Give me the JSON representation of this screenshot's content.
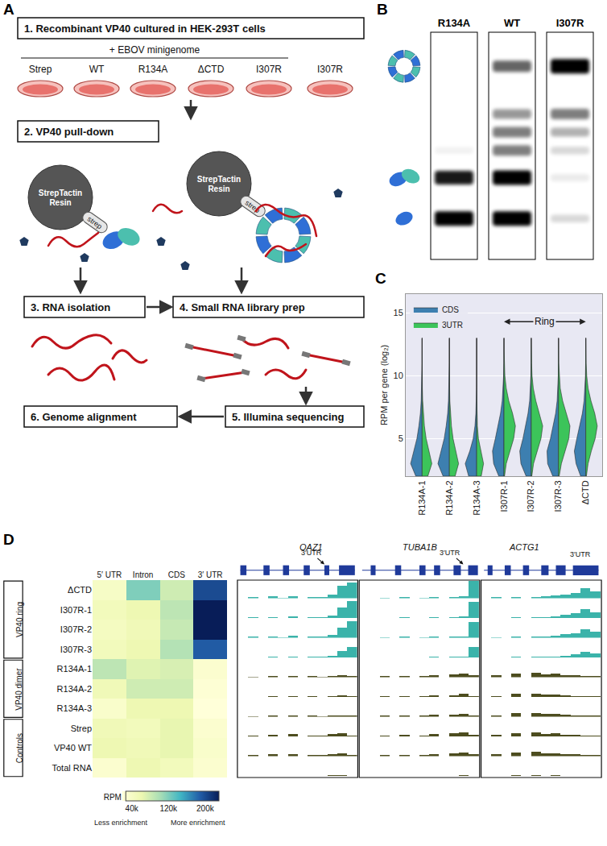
{
  "panel_labels": [
    "A",
    "B",
    "C",
    "D"
  ],
  "diagram": {
    "steps": [
      "1.  Recombinant VP40 cultured in HEK-293T cells",
      "2.  VP40 pull-down",
      "3.  RNA isolation",
      "4.  Small RNA library prep",
      "5.  Illumina sequencing",
      "6.  Genome alignment"
    ],
    "minigenome": "+ EBOV minigenome",
    "dishes": [
      "Strep",
      "WT",
      "R134A",
      "ΔCTD",
      "I307R",
      "I307R"
    ],
    "resin": "StrepTactin Resin",
    "tag": "strep"
  },
  "blot": {
    "lanes": [
      {
        "name": "R134A",
        "bands": [
          0,
          0,
          0,
          0.05,
          0.9,
          1.0
        ]
      },
      {
        "name": "WT",
        "bands": [
          0.6,
          0.4,
          0.5,
          0.5,
          1.0,
          1.0
        ]
      },
      {
        "name": "I307R",
        "bands": [
          1.0,
          0.5,
          0.3,
          0.15,
          0.08,
          0.15
        ]
      }
    ]
  },
  "chart_data": [
    {
      "type": "violin",
      "y_label": "RPM per gene (log₂)",
      "categories": [
        "R134A-1",
        "R134A-2",
        "R134A-3",
        "I307R-1",
        "I307R-2",
        "I307R-3",
        "ΔCTD"
      ],
      "y": [
        2,
        3,
        4,
        5,
        6,
        7,
        8,
        9,
        10,
        11,
        12,
        13
      ],
      "series": [
        {
          "name": "CDS",
          "color": "#3d7fb0",
          "values": [
            [
              0.55,
              1.0,
              0.75,
              0.45,
              0.28,
              0.15,
              0.08,
              0.04,
              0.02,
              0.01,
              0.005,
              0
            ],
            [
              0.55,
              1.0,
              0.75,
              0.45,
              0.28,
              0.15,
              0.08,
              0.04,
              0.02,
              0.01,
              0.005,
              0
            ],
            [
              0.7,
              1.0,
              0.6,
              0.3,
              0.15,
              0.07,
              0.03,
              0.01,
              0.005,
              0,
              0,
              0
            ],
            [
              0.45,
              0.9,
              1.0,
              0.75,
              0.5,
              0.3,
              0.15,
              0.07,
              0.03,
              0.01,
              0.005,
              0
            ],
            [
              0.45,
              0.9,
              1.0,
              0.72,
              0.48,
              0.28,
              0.14,
              0.06,
              0.03,
              0.01,
              0.005,
              0
            ],
            [
              0.5,
              0.95,
              1.0,
              0.7,
              0.45,
              0.25,
              0.12,
              0.05,
              0.02,
              0.01,
              0,
              0
            ],
            [
              0.45,
              0.85,
              1.0,
              0.78,
              0.52,
              0.3,
              0.15,
              0.07,
              0.03,
              0.01,
              0.005,
              0
            ]
          ]
        },
        {
          "name": "3UTR",
          "color": "#3cc45a",
          "values": [
            [
              0.5,
              0.85,
              0.6,
              0.35,
              0.2,
              0.1,
              0.05,
              0.02,
              0.01,
              0.005,
              0,
              0
            ],
            [
              0.5,
              0.8,
              0.55,
              0.32,
              0.18,
              0.09,
              0.04,
              0.02,
              0.01,
              0,
              0,
              0
            ],
            [
              0.4,
              0.6,
              0.35,
              0.15,
              0.06,
              0.02,
              0.01,
              0,
              0,
              0,
              0,
              0
            ],
            [
              0.05,
              0.2,
              0.5,
              0.85,
              1.0,
              0.75,
              0.42,
              0.2,
              0.08,
              0.03,
              0.01,
              0.005
            ],
            [
              0.05,
              0.2,
              0.5,
              0.85,
              1.0,
              0.72,
              0.4,
              0.18,
              0.07,
              0.03,
              0.01,
              0
            ],
            [
              0.06,
              0.25,
              0.55,
              0.9,
              1.0,
              0.7,
              0.36,
              0.15,
              0.06,
              0.02,
              0.01,
              0
            ],
            [
              0.05,
              0.2,
              0.48,
              0.82,
              1.0,
              0.78,
              0.45,
              0.2,
              0.08,
              0.03,
              0.01,
              0.005
            ]
          ]
        }
      ],
      "ylim": [
        2,
        16.5
      ],
      "yticks": [
        5,
        10,
        15
      ],
      "grid": true,
      "legend": "top left",
      "annotations": [
        {
          "text": "Ring",
          "from": "I307R-1",
          "to": "ΔCTD"
        }
      ]
    },
    {
      "type": "heatmap",
      "columns": [
        "5′ UTR",
        "Intron",
        "CDS",
        "3′ UTR"
      ],
      "rows": [
        "ΔCTD",
        "I307R-1",
        "I307R-2",
        "I307R-3",
        "R134A-1",
        "R134A-2",
        "R134A-3",
        "Strep",
        "VP40 WT",
        "Total RNA"
      ],
      "groups": [
        {
          "label": "VP40 ring",
          "rows": [
            "ΔCTD",
            "I307R-1",
            "I307R-2",
            "I307R-3"
          ]
        },
        {
          "label": "VP40 dimer",
          "rows": [
            "R134A-1",
            "R134A-2",
            "R134A-3"
          ]
        },
        {
          "label": "Controls",
          "rows": [
            "Strep",
            "VP40 WT",
            "Total RNA"
          ]
        }
      ],
      "cells": [
        [
          40000,
          120000,
          80000,
          200000
        ],
        [
          50000,
          60000,
          90000,
          230000
        ],
        [
          45000,
          55000,
          85000,
          230000
        ],
        [
          50000,
          60000,
          95000,
          190000
        ],
        [
          90000,
          70000,
          75000,
          30000
        ],
        [
          55000,
          80000,
          80000,
          25000
        ],
        [
          35000,
          60000,
          60000,
          20000
        ],
        [
          55000,
          50000,
          65000,
          30000
        ],
        [
          60000,
          55000,
          65000,
          35000
        ],
        [
          30000,
          60000,
          50000,
          30000
        ]
      ],
      "zlim": [
        20000,
        230000
      ],
      "zticks": [
        {
          "value": 40000,
          "label": "40k"
        },
        {
          "value": 120000,
          "label": "120k"
        },
        {
          "value": 200000,
          "label": "200k"
        }
      ],
      "colorbar_title": "RPM",
      "colorbar_notes": [
        "Less enrichment",
        "More enrichment"
      ]
    },
    {
      "type": "bar",
      "genes": [
        {
          "name": "OAZ1",
          "note": "3′UTR",
          "marker": "arrow"
        },
        {
          "name": "TUBA1B",
          "note": "3′UTR",
          "marker": "arrow"
        },
        {
          "name": "ACTG1",
          "note": "3′UTR",
          "marker": "none"
        }
      ],
      "ylim": [
        0,
        100
      ],
      "tick_labels": false,
      "series": [
        {
          "color": "#3bb3aa",
          "values": [
            [
              0,
              4,
              0,
              10,
              2,
              12,
              0,
              5,
              8,
              20,
              70,
              85
            ],
            [
              0,
              0,
              2,
              0,
              3,
              0,
              2,
              4,
              0,
              5,
              10,
              95
            ],
            [
              0,
              3,
              0,
              6,
              0,
              8,
              10,
              15,
              20,
              30,
              55,
              40
            ]
          ]
        },
        {
          "color": "#3bb3aa",
          "values": [
            [
              0,
              3,
              0,
              8,
              2,
              10,
              0,
              4,
              6,
              15,
              60,
              95
            ],
            [
              0,
              0,
              2,
              0,
              3,
              0,
              2,
              4,
              0,
              5,
              10,
              90
            ],
            [
              0,
              2,
              0,
              5,
              0,
              6,
              8,
              12,
              18,
              28,
              50,
              35
            ]
          ]
        },
        {
          "color": "#3bb3aa",
          "values": [
            [
              0,
              3,
              0,
              8,
              2,
              10,
              0,
              4,
              6,
              15,
              55,
              90
            ],
            [
              0,
              0,
              2,
              0,
              3,
              0,
              2,
              3,
              0,
              4,
              8,
              85
            ],
            [
              0,
              2,
              0,
              5,
              0,
              6,
              8,
              12,
              18,
              25,
              48,
              35
            ]
          ]
        },
        {
          "color": "#3bb3aa",
          "values": [
            [
              0,
              2,
              0,
              6,
              1,
              8,
              0,
              3,
              5,
              10,
              40,
              60
            ],
            [
              0,
              0,
              1,
              0,
              2,
              0,
              1,
              3,
              0,
              3,
              6,
              60
            ],
            [
              0,
              1,
              0,
              3,
              0,
              4,
              5,
              8,
              12,
              18,
              35,
              25
            ]
          ]
        },
        {
          "color": "#4d4d1f",
          "values": [
            [
              0,
              2,
              0,
              6,
              0,
              8,
              0,
              3,
              2,
              8,
              10,
              6
            ],
            [
              0,
              0,
              5,
              0,
              8,
              0,
              5,
              12,
              0,
              15,
              20,
              10
            ],
            [
              0,
              10,
              0,
              20,
              0,
              25,
              15,
              18,
              12,
              10,
              8,
              5
            ]
          ]
        },
        {
          "color": "#4d4d1f",
          "values": [
            [
              0,
              2,
              0,
              7,
              0,
              9,
              0,
              3,
              2,
              9,
              10,
              5
            ],
            [
              0,
              0,
              4,
              0,
              6,
              0,
              4,
              10,
              0,
              12,
              18,
              8
            ],
            [
              0,
              8,
              0,
              18,
              0,
              22,
              14,
              15,
              10,
              8,
              6,
              4
            ]
          ]
        },
        {
          "color": "#4d4d1f",
          "values": [
            [
              0,
              2,
              0,
              6,
              0,
              8,
              0,
              3,
              2,
              8,
              9,
              4
            ],
            [
              0,
              0,
              4,
              0,
              6,
              0,
              4,
              10,
              0,
              12,
              16,
              8
            ],
            [
              0,
              8,
              0,
              18,
              0,
              22,
              14,
              15,
              10,
              8,
              6,
              4
            ]
          ]
        },
        {
          "color": "#4d4d1f",
          "values": [
            [
              0,
              3,
              0,
              12,
              0,
              14,
              0,
              6,
              3,
              15,
              18,
              8
            ],
            [
              0,
              0,
              6,
              0,
              10,
              0,
              6,
              14,
              0,
              18,
              25,
              10
            ],
            [
              0,
              10,
              0,
              22,
              0,
              25,
              15,
              18,
              12,
              10,
              8,
              4
            ]
          ]
        },
        {
          "color": "#4d4d1f",
          "values": [
            [
              0,
              3,
              0,
              10,
              0,
              12,
              0,
              5,
              3,
              12,
              15,
              6
            ],
            [
              0,
              0,
              5,
              0,
              8,
              0,
              5,
              12,
              0,
              15,
              22,
              10
            ],
            [
              0,
              10,
              0,
              20,
              0,
              25,
              15,
              16,
              12,
              10,
              8,
              4
            ]
          ]
        },
        {
          "color": "#4d4d1f",
          "values": [
            [
              0,
              1,
              0,
              2,
              0,
              2,
              0,
              1,
              0,
              3,
              3,
              2
            ],
            [
              0,
              0,
              1,
              0,
              2,
              0,
              1,
              2,
              0,
              2,
              4,
              2
            ],
            [
              0,
              1,
              0,
              3,
              0,
              3,
              2,
              3,
              2,
              2,
              2,
              1
            ]
          ]
        }
      ]
    }
  ]
}
